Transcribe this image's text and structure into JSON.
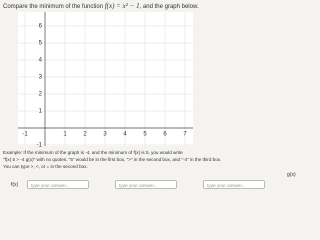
{
  "question": {
    "prefix": "Compare the minimum of the function",
    "formula": "f(x) = x² − 1",
    "suffix": ", and the graph below."
  },
  "graph": {
    "x_ticks": [
      -1,
      1,
      2,
      3,
      4,
      5,
      6,
      7
    ],
    "y_ticks": [
      -1,
      1,
      2,
      3,
      4,
      5,
      6
    ]
  },
  "instructions": [
    "Example: If the minimum of the graph is -4, and the minimum of f(x) is 5, you would write",
    "\"f(x) 5 > -4 g(x)\" with no quotes. \"5\" would be in the first box, \">\" in the second box, and \"-4\" in the third box.",
    "You can type >, <, or = in the second box."
  ],
  "answer_row": {
    "left_label": "f(x)",
    "placeholders": [
      "type your answer...",
      "type your answer...",
      "type your answer..."
    ],
    "right_label": "g(x)"
  }
}
